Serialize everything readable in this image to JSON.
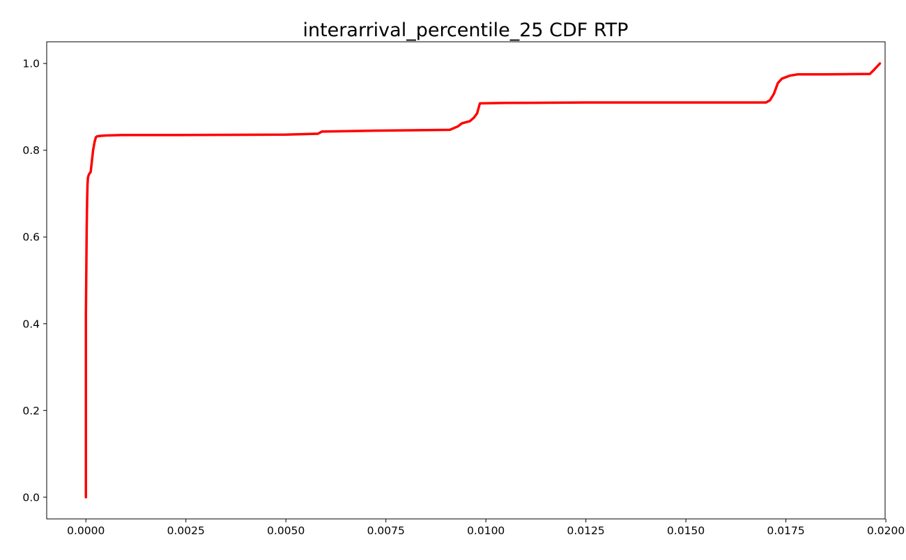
{
  "chart_data": {
    "type": "line",
    "title": "interarrival_percentile_25 CDF RTP",
    "xlabel": "",
    "ylabel": "",
    "xlim": [
      -0.00098,
      0.01998
    ],
    "ylim": [
      -0.05,
      1.05
    ],
    "grid": false,
    "x_ticks": [
      0.0,
      0.0025,
      0.005,
      0.0075,
      0.01,
      0.0125,
      0.015,
      0.0175,
      0.02
    ],
    "x_tick_labels": [
      "0.0000",
      "0.0025",
      "0.0050",
      "0.0075",
      "0.0100",
      "0.0125",
      "0.0150",
      "0.0175",
      "0.0200"
    ],
    "y_ticks": [
      0.0,
      0.2,
      0.4,
      0.6,
      0.8,
      1.0
    ],
    "y_tick_labels": [
      "0.0",
      "0.2",
      "0.4",
      "0.6",
      "0.8",
      "1.0"
    ],
    "series": [
      {
        "color": "#ff0000",
        "x": [
          0.0,
          0.0,
          2e-05,
          3e-05,
          4e-05,
          5e-05,
          6e-05,
          8e-05,
          0.00012,
          0.00018,
          0.00022,
          0.00025,
          0.00028,
          0.00035,
          0.0005,
          0.0009,
          0.002,
          0.005,
          0.0058,
          0.0059,
          0.0072,
          0.0091,
          0.0093,
          0.0094,
          0.0096,
          0.0097,
          0.00978,
          0.00985,
          0.0105,
          0.0125,
          0.015,
          0.017,
          0.0171,
          0.0172,
          0.0173,
          0.0174,
          0.0176,
          0.0178,
          0.0185,
          0.0196,
          0.0197,
          0.0198,
          0.01985
        ],
        "y": [
          0.0,
          0.42,
          0.62,
          0.68,
          0.72,
          0.735,
          0.74,
          0.745,
          0.75,
          0.8,
          0.82,
          0.83,
          0.832,
          0.833,
          0.834,
          0.835,
          0.835,
          0.836,
          0.838,
          0.843,
          0.845,
          0.847,
          0.855,
          0.862,
          0.867,
          0.875,
          0.885,
          0.908,
          0.909,
          0.91,
          0.91,
          0.91,
          0.915,
          0.93,
          0.955,
          0.965,
          0.972,
          0.975,
          0.975,
          0.976,
          0.985,
          0.995,
          1.0
        ]
      }
    ]
  }
}
